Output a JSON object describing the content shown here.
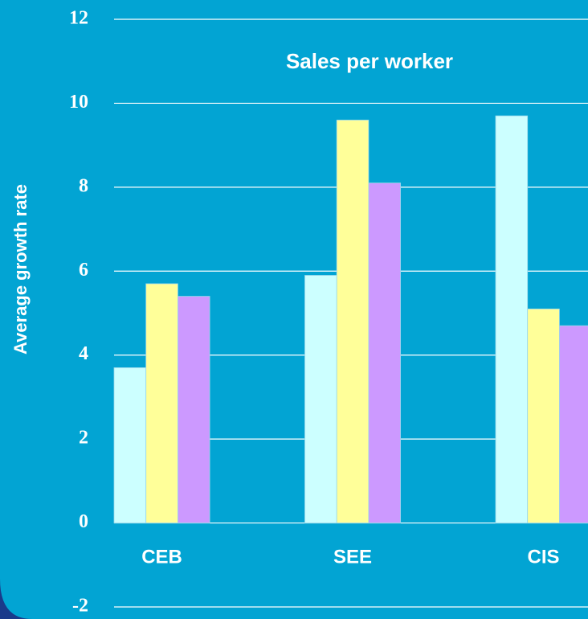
{
  "chart_data": {
    "type": "bar",
    "title": "Sales per worker",
    "y_label": "Average growth rate",
    "categories": [
      "CEB",
      "SEE",
      "CIS"
    ],
    "series": [
      {
        "color": "#ccffff",
        "values": [
          3.7,
          5.9,
          9.7
        ]
      },
      {
        "color": "#ffff99",
        "values": [
          5.7,
          9.6,
          5.1
        ]
      },
      {
        "color": "#cc99ff",
        "values": [
          5.4,
          8.1,
          4.7
        ]
      }
    ],
    "ylim": [
      -2,
      12
    ],
    "yticks": [
      -2,
      0,
      2,
      4,
      6,
      8,
      10,
      12
    ],
    "grid": true
  }
}
